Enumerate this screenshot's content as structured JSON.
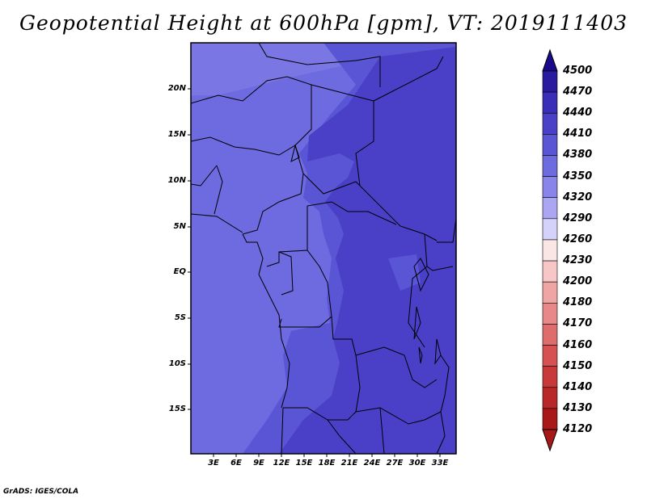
{
  "title": "Geopotential Height at 600hPa [gpm], VT: 2019111403",
  "footer": "GrADS: IGES/COLA",
  "map": {
    "lat_labels": [
      "20N",
      "15N",
      "10N",
      "5N",
      "EQ",
      "5S",
      "10S",
      "15S"
    ],
    "lon_labels": [
      "3E",
      "6E",
      "9E",
      "12E",
      "15E",
      "18E",
      "21E",
      "24E",
      "27E",
      "30E",
      "33E"
    ]
  },
  "colorbar": {
    "levels": [
      "4500",
      "4470",
      "4440",
      "4410",
      "4380",
      "4350",
      "4320",
      "4290",
      "4260",
      "4230",
      "4200",
      "4180",
      "4170",
      "4160",
      "4150",
      "4140",
      "4130",
      "4120"
    ],
    "colors": {
      "4500": "#1a0a8a",
      "4470": "#2a1aa0",
      "4440": "#3a2eb8",
      "4410": "#4a40c8",
      "4380": "#5a55d4",
      "4350": "#6e6ae0",
      "4320": "#8884ea",
      "4290": "#aaa6f2",
      "4260": "#d4d2fa",
      "4230": "#fbe6e6",
      "4200": "#f7c6c6",
      "4180": "#f0a5a5",
      "4170": "#e88888",
      "4160": "#df6c6c",
      "4150": "#d65252",
      "4140": "#c83a3a",
      "4130": "#b82828",
      "4120": "#a81818"
    }
  },
  "fill_colors": {
    "lighter": "#7a76e4",
    "light": "#6e6ae0",
    "mid": "#5a55d4",
    "dark": "#4a40c8"
  }
}
